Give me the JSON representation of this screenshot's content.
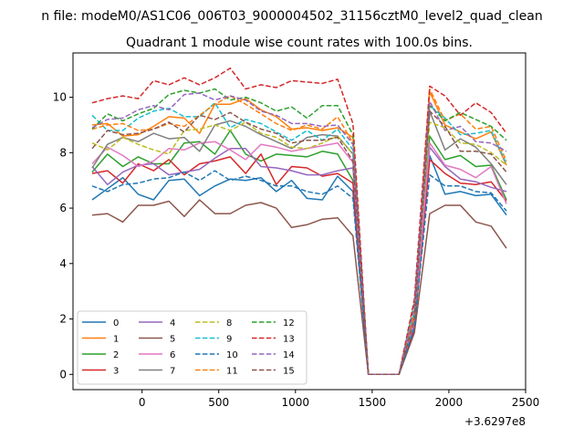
{
  "chart_data": {
    "type": "line",
    "suptitle": "n file: modeM0/AS1C06_006T03_9000004502_31156cztM0_level2_quad_clean",
    "title": "Quadrant 1 module wise count rates with 100.0s bins.",
    "xlabel": "",
    "ylabel": "",
    "x_offset_label": "+3.6297e8",
    "xlim": [
      -450,
      2500
    ],
    "ylim": [
      -0.55,
      11.6
    ],
    "xticks": [
      0,
      500,
      1000,
      1500,
      2000,
      2500
    ],
    "yticks": [
      0,
      2,
      4,
      6,
      8,
      10
    ],
    "legend_location": "lower-left",
    "x": [
      -325,
      -225,
      -125,
      -25,
      75,
      175,
      275,
      375,
      475,
      575,
      675,
      775,
      875,
      975,
      1075,
      1175,
      1275,
      1375,
      1475,
      1575,
      1675,
      1775,
      1875,
      1975,
      2075,
      2175,
      2275,
      2375
    ],
    "series": [
      {
        "name": "0",
        "color": "#1f77b4",
        "dash": "solid",
        "values": [
          6.3,
          6.7,
          7.1,
          6.5,
          6.3,
          7.0,
          7.05,
          6.45,
          6.8,
          7.05,
          7.0,
          7.1,
          6.6,
          7.0,
          6.35,
          6.3,
          7.15,
          6.6,
          0,
          0,
          0,
          1.6,
          7.9,
          6.5,
          6.6,
          6.45,
          6.5,
          5.75
        ]
      },
      {
        "name": "1",
        "color": "#ff7f0e",
        "dash": "solid",
        "values": [
          9.0,
          9.05,
          8.6,
          8.65,
          8.95,
          9.3,
          9.25,
          8.7,
          9.75,
          9.75,
          9.95,
          9.55,
          9.3,
          8.85,
          8.9,
          8.8,
          8.9,
          8.55,
          0,
          0,
          0,
          2.2,
          10.2,
          9.0,
          8.75,
          8.5,
          8.75,
          7.55
        ]
      },
      {
        "name": "2",
        "color": "#2ca02c",
        "dash": "solid",
        "values": [
          7.3,
          7.95,
          7.5,
          7.85,
          7.6,
          7.6,
          8.35,
          8.4,
          7.95,
          8.8,
          7.95,
          7.7,
          7.95,
          7.9,
          7.85,
          8.05,
          7.95,
          7.0,
          0,
          0,
          0,
          2.0,
          8.6,
          7.75,
          7.9,
          7.5,
          7.55,
          6.3
        ]
      },
      {
        "name": "3",
        "color": "#d62728",
        "dash": "solid",
        "values": [
          7.25,
          7.35,
          6.9,
          7.6,
          7.35,
          7.75,
          7.2,
          7.6,
          7.7,
          7.85,
          7.25,
          7.95,
          6.85,
          7.5,
          7.45,
          7.15,
          7.25,
          6.9,
          0,
          0,
          0,
          1.7,
          7.75,
          7.25,
          6.9,
          6.85,
          6.95,
          6.25
        ]
      },
      {
        "name": "4",
        "color": "#9467bd",
        "dash": "solid",
        "values": [
          7.5,
          6.85,
          7.3,
          7.55,
          7.6,
          7.2,
          7.3,
          7.4,
          7.8,
          8.15,
          8.15,
          7.5,
          7.45,
          7.35,
          7.2,
          7.2,
          7.35,
          7.45,
          0,
          0,
          0,
          1.9,
          8.2,
          7.5,
          7.05,
          6.95,
          6.75,
          6.6
        ]
      },
      {
        "name": "5",
        "color": "#8c564b",
        "dash": "solid",
        "values": [
          5.75,
          5.8,
          5.5,
          6.1,
          6.1,
          6.25,
          5.7,
          6.3,
          5.8,
          5.8,
          6.1,
          6.2,
          6.0,
          5.3,
          5.4,
          5.6,
          5.65,
          5.0,
          0,
          0,
          0,
          1.5,
          5.8,
          6.1,
          6.1,
          5.5,
          5.35,
          4.55
        ]
      },
      {
        "name": "6",
        "color": "#e377c2",
        "dash": "solid",
        "values": [
          7.6,
          8.2,
          7.9,
          7.5,
          7.7,
          8.15,
          8.1,
          8.35,
          8.4,
          8.1,
          7.75,
          8.3,
          8.2,
          8.05,
          8.15,
          8.25,
          8.35,
          7.65,
          0,
          0,
          0,
          1.9,
          8.35,
          7.55,
          7.4,
          7.1,
          7.5,
          6.15
        ]
      },
      {
        "name": "7",
        "color": "#7f7f7f",
        "dash": "solid",
        "values": [
          7.45,
          8.3,
          8.55,
          8.4,
          8.7,
          8.5,
          8.55,
          8.05,
          9.0,
          9.15,
          8.95,
          8.65,
          8.4,
          8.15,
          8.55,
          8.65,
          8.6,
          7.95,
          0,
          0,
          0,
          2.1,
          9.5,
          8.1,
          8.5,
          8.2,
          7.6,
          6.85
        ]
      },
      {
        "name": "8",
        "color": "#bcbd22",
        "dash": "dashed",
        "values": [
          8.35,
          8.1,
          8.55,
          8.3,
          8.1,
          7.95,
          8.8,
          8.85,
          9.0,
          8.8,
          9.1,
          8.7,
          8.55,
          8.2,
          8.15,
          8.35,
          8.6,
          7.95,
          0,
          0,
          0,
          2.2,
          9.1,
          8.9,
          8.35,
          8.3,
          8.0,
          7.55
        ]
      },
      {
        "name": "9",
        "color": "#17becf",
        "dash": "dashed",
        "values": [
          9.35,
          8.8,
          8.8,
          9.25,
          9.5,
          9.6,
          9.3,
          9.3,
          9.8,
          8.9,
          9.2,
          9.05,
          8.75,
          8.45,
          8.8,
          8.45,
          8.85,
          8.1,
          0,
          0,
          0,
          2.3,
          9.7,
          9.25,
          8.65,
          8.7,
          8.8,
          7.6
        ]
      },
      {
        "name": "10",
        "color": "#1f77b4",
        "dash": "dashed",
        "values": [
          6.8,
          6.6,
          6.85,
          6.9,
          7.05,
          7.1,
          7.3,
          7.0,
          7.35,
          7.0,
          7.15,
          7.0,
          6.8,
          6.8,
          6.6,
          6.5,
          6.8,
          6.35,
          0,
          0,
          0,
          1.7,
          7.2,
          6.8,
          6.8,
          6.6,
          6.55,
          5.9
        ]
      },
      {
        "name": "11",
        "color": "#ff7f0e",
        "dash": "dashed",
        "values": [
          8.85,
          9.0,
          9.05,
          8.8,
          8.85,
          9.05,
          8.95,
          9.35,
          9.75,
          10.05,
          9.75,
          9.4,
          9.05,
          8.8,
          9.0,
          8.85,
          9.3,
          8.35,
          0,
          0,
          0,
          2.2,
          10.3,
          9.15,
          9.4,
          8.85,
          8.95,
          7.7
        ]
      },
      {
        "name": "12",
        "color": "#2ca02c",
        "dash": "dashed",
        "values": [
          8.85,
          9.4,
          9.15,
          9.4,
          9.6,
          10.1,
          10.25,
          10.15,
          10.3,
          9.9,
          10.0,
          9.8,
          9.5,
          9.65,
          9.25,
          9.7,
          9.7,
          8.65,
          0,
          0,
          0,
          2.6,
          9.7,
          9.15,
          9.45,
          9.2,
          8.95,
          8.45
        ]
      },
      {
        "name": "13",
        "color": "#d62728",
        "dash": "dashed",
        "values": [
          9.8,
          9.95,
          10.05,
          9.95,
          10.6,
          10.45,
          10.7,
          10.45,
          10.7,
          11.05,
          10.3,
          10.45,
          10.35,
          10.6,
          10.55,
          10.5,
          10.65,
          9.05,
          0,
          0,
          0,
          2.7,
          10.4,
          10.05,
          9.35,
          9.8,
          9.45,
          8.7
        ]
      },
      {
        "name": "14",
        "color": "#9467bd",
        "dash": "dashed",
        "values": [
          8.9,
          9.2,
          9.25,
          9.55,
          9.7,
          9.55,
          10.1,
          10.15,
          9.9,
          10.05,
          9.9,
          9.5,
          9.35,
          9.05,
          9.05,
          8.95,
          9.0,
          8.3,
          0,
          0,
          0,
          2.4,
          9.85,
          8.8,
          8.95,
          8.4,
          8.35,
          8.05
        ]
      },
      {
        "name": "15",
        "color": "#8c564b",
        "dash": "dashed",
        "values": [
          8.15,
          8.8,
          8.65,
          8.7,
          8.85,
          9.1,
          8.75,
          9.35,
          9.2,
          9.45,
          9.1,
          8.85,
          8.7,
          8.35,
          8.45,
          8.45,
          8.55,
          7.7,
          0,
          0,
          0,
          2.0,
          9.5,
          8.95,
          8.05,
          8.05,
          7.95,
          7.3
        ]
      }
    ]
  }
}
